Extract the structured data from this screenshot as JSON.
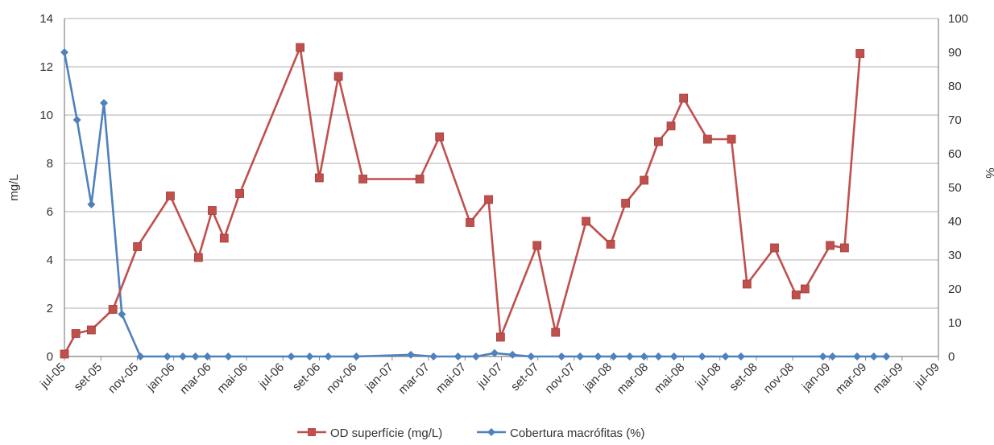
{
  "chart_data": {
    "type": "line",
    "x_tick_labels": [
      "jul-05",
      "set-05",
      "nov-05",
      "jan-06",
      "mar-06",
      "mai-06",
      "jul-06",
      "set-06",
      "nov-06",
      "jan-07",
      "mar-07",
      "mai-07",
      "jul-07",
      "set-07",
      "nov-07",
      "jan-08",
      "mar-08",
      "mai-08",
      "jul-08",
      "set-08",
      "nov-08",
      "jan-09",
      "mar-09",
      "mai-09",
      "jul-09"
    ],
    "xlim": [
      "2005-07-01",
      "2009-07-01"
    ],
    "y_left": {
      "label": "mg/L",
      "lim": [
        0,
        14
      ],
      "ticks": [
        "0",
        "2",
        "4",
        "6",
        "8",
        "10",
        "12",
        "14"
      ]
    },
    "y_right": {
      "label": "%",
      "lim": [
        0,
        100
      ],
      "ticks": [
        "0",
        "10",
        "20",
        "30",
        "40",
        "50",
        "60",
        "70",
        "80",
        "90",
        "100"
      ]
    },
    "grid": true,
    "legend": "bottom",
    "series": [
      {
        "name": "OD superfície (mg/L)",
        "axis": "left",
        "color": "#c0504d",
        "marker": "square",
        "points": [
          [
            "2005-07-01",
            0.1
          ],
          [
            "2005-07-20",
            0.95
          ],
          [
            "2005-08-15",
            1.1
          ],
          [
            "2005-09-20",
            1.95
          ],
          [
            "2005-10-31",
            4.55
          ],
          [
            "2005-12-25",
            6.65
          ],
          [
            "2006-02-10",
            4.1
          ],
          [
            "2006-03-05",
            6.05
          ],
          [
            "2006-03-25",
            4.9
          ],
          [
            "2006-04-20",
            6.75
          ],
          [
            "2006-07-30",
            12.8
          ],
          [
            "2006-08-31",
            7.4
          ],
          [
            "2006-10-02",
            11.6
          ],
          [
            "2006-11-12",
            7.35
          ],
          [
            "2007-02-15",
            7.35
          ],
          [
            "2007-03-20",
            9.1
          ],
          [
            "2007-05-10",
            5.55
          ],
          [
            "2007-06-10",
            6.5
          ],
          [
            "2007-06-30",
            0.8
          ],
          [
            "2007-08-30",
            4.6
          ],
          [
            "2007-09-30",
            1.0
          ],
          [
            "2007-11-20",
            5.6
          ],
          [
            "2007-12-31",
            4.65
          ],
          [
            "2008-01-25",
            6.35
          ],
          [
            "2008-02-25",
            7.3
          ],
          [
            "2008-03-20",
            8.9
          ],
          [
            "2008-04-10",
            9.55
          ],
          [
            "2008-05-01",
            10.7
          ],
          [
            "2008-06-10",
            9.0
          ],
          [
            "2008-07-20",
            9.0
          ],
          [
            "2008-08-15",
            3.0
          ],
          [
            "2008-09-30",
            4.5
          ],
          [
            "2008-11-05",
            2.55
          ],
          [
            "2008-11-20",
            2.8
          ],
          [
            "2009-01-01",
            4.6
          ],
          [
            "2009-01-25",
            4.5
          ],
          [
            "2009-02-20",
            12.55
          ]
        ]
      },
      {
        "name": "Cobertura macrófitas (%)",
        "axis": "right",
        "color": "#4f81bd",
        "marker": "diamond",
        "points": [
          [
            "2005-07-01",
            90
          ],
          [
            "2005-07-22",
            70
          ],
          [
            "2005-08-15",
            45
          ],
          [
            "2005-09-05",
            75
          ],
          [
            "2005-10-05",
            12.5
          ],
          [
            "2005-11-05",
            0
          ],
          [
            "2005-12-20",
            0
          ],
          [
            "2006-01-15",
            0
          ],
          [
            "2006-02-05",
            0
          ],
          [
            "2006-02-25",
            0
          ],
          [
            "2006-04-01",
            0
          ],
          [
            "2006-07-15",
            0
          ],
          [
            "2006-08-15",
            0
          ],
          [
            "2006-09-15",
            0
          ],
          [
            "2006-11-01",
            0
          ],
          [
            "2007-01-31",
            0.5
          ],
          [
            "2007-03-10",
            0
          ],
          [
            "2007-04-20",
            0
          ],
          [
            "2007-05-20",
            0
          ],
          [
            "2007-06-20",
            1
          ],
          [
            "2007-07-20",
            0.5
          ],
          [
            "2007-08-20",
            0
          ],
          [
            "2007-10-10",
            0
          ],
          [
            "2007-11-10",
            0
          ],
          [
            "2007-12-10",
            0
          ],
          [
            "2008-01-05",
            0
          ],
          [
            "2008-02-01",
            0
          ],
          [
            "2008-02-25",
            0
          ],
          [
            "2008-03-20",
            0
          ],
          [
            "2008-04-15",
            0
          ],
          [
            "2008-06-01",
            0
          ],
          [
            "2008-07-10",
            0
          ],
          [
            "2008-08-05",
            0
          ],
          [
            "2008-12-20",
            0
          ],
          [
            "2009-01-05",
            0
          ],
          [
            "2009-02-15",
            0
          ],
          [
            "2009-03-15",
            0
          ],
          [
            "2009-04-05",
            0
          ]
        ]
      }
    ]
  }
}
